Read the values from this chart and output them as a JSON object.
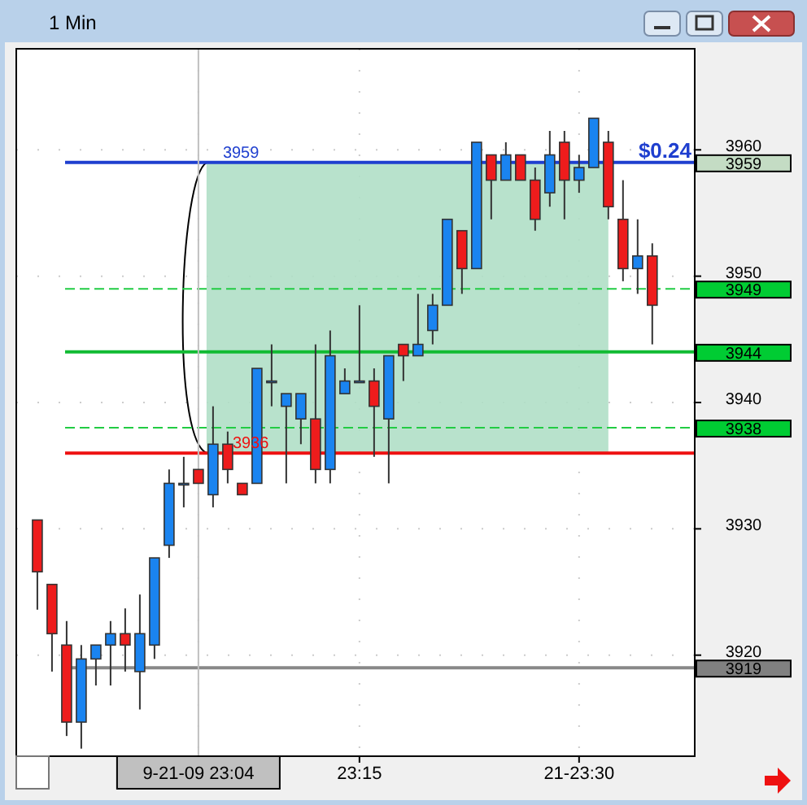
{
  "chart_data": {
    "type": "candlestick",
    "title": "1 Min",
    "categories": [
      null,
      null,
      null,
      null,
      null,
      null,
      null,
      null,
      null,
      null,
      null,
      "9-21-09 23:04",
      null,
      null,
      null,
      null,
      null,
      null,
      null,
      null,
      null,
      null,
      "23:15",
      null,
      null,
      null,
      null,
      null,
      null,
      null,
      null,
      null,
      null,
      null,
      null,
      null,
      null,
      "21-23:30",
      null,
      null,
      null,
      null,
      null
    ],
    "ohlc": [
      [
        3930.7,
        3930.7,
        3923.6,
        3926.6
      ],
      [
        3925.6,
        3925.6,
        3918.7,
        3921.7
      ],
      [
        3920.8,
        3922.7,
        3913.6,
        3914.7
      ],
      [
        3914.7,
        3920.8,
        3912.6,
        3919.7
      ],
      [
        3919.7,
        3920.8,
        3917.6,
        3920.8
      ],
      [
        3920.8,
        3922.7,
        3917.6,
        3921.7
      ],
      [
        3921.7,
        3923.7,
        3918.7,
        3920.8
      ],
      [
        3918.7,
        3924.8,
        3915.7,
        3921.7
      ],
      [
        3920.8,
        3927.7,
        3919.7,
        3927.7
      ],
      [
        3928.7,
        3934.7,
        3927.7,
        3933.6
      ],
      [
        3933.6,
        3935.7,
        3931.7,
        3933.6
      ],
      [
        3934.7,
        3934.7,
        3933.6,
        3933.6
      ],
      [
        3932.7,
        3939.7,
        3931.7,
        3936.7
      ],
      [
        3936.7,
        3937.7,
        3933.6,
        3934.7
      ],
      [
        3933.6,
        3933.6,
        3932.7,
        3932.7
      ],
      [
        3933.6,
        3942.7,
        3933.6,
        3942.7
      ],
      [
        3941.7,
        3944.6,
        3939.7,
        3941.7
      ],
      [
        3939.7,
        3940.7,
        3933.6,
        3940.7
      ],
      [
        3938.7,
        3940.7,
        3936.7,
        3940.7
      ],
      [
        3938.7,
        3944.6,
        3933.6,
        3934.7
      ],
      [
        3934.7,
        3945.7,
        3933.6,
        3943.7
      ],
      [
        3940.7,
        3942.7,
        3940.7,
        3941.7
      ],
      [
        3941.7,
        3947.7,
        3941.7,
        3941.7
      ],
      [
        3941.7,
        3942.7,
        3935.7,
        3939.7
      ],
      [
        3938.7,
        3943.7,
        3933.6,
        3943.7
      ],
      [
        3944.6,
        3944.6,
        3941.7,
        3943.7
      ],
      [
        3943.7,
        3948.6,
        3943.7,
        3944.6
      ],
      [
        3945.7,
        3948.6,
        3944.6,
        3947.7
      ],
      [
        3947.7,
        3954.5,
        3947.7,
        3954.5
      ],
      [
        3953.6,
        3953.6,
        3948.6,
        3950.6
      ],
      [
        3950.6,
        3960.6,
        3950.6,
        3960.6
      ],
      [
        3959.6,
        3959.6,
        3954.5,
        3957.6
      ],
      [
        3957.6,
        3960.6,
        3957.6,
        3959.6
      ],
      [
        3959.6,
        3959.6,
        3957.6,
        3957.6
      ],
      [
        3957.6,
        3958.6,
        3953.6,
        3954.5
      ],
      [
        3956.6,
        3961.5,
        3955.5,
        3959.6
      ],
      [
        3960.6,
        3961.5,
        3954.5,
        3957.6
      ],
      [
        3957.6,
        3959.6,
        3956.6,
        3958.6
      ],
      [
        3958.6,
        3962.5,
        3958.6,
        3962.5
      ],
      [
        3960.6,
        3961.5,
        3954.5,
        3955.5
      ],
      [
        3954.5,
        3957.6,
        3949.6,
        3950.6
      ],
      [
        3950.6,
        3954.5,
        3948.6,
        3951.6
      ],
      [
        3951.6,
        3952.6,
        3944.6,
        3947.7
      ]
    ],
    "colors": [
      "#ee1c1c",
      "#ee1c1c",
      "#ee1c1c",
      "#1a84f0",
      "#1a84f0",
      "#1a84f0",
      "#ee1c1c",
      "#1a84f0",
      "#1a84f0",
      "#1a84f0",
      "#1a84f0",
      "#ee1c1c",
      "#1a84f0",
      "#ee1c1c",
      "#ee1c1c",
      "#1a84f0",
      "#1a84f0",
      "#1a84f0",
      "#1a84f0",
      "#ee1c1c",
      "#1a84f0",
      "#1a84f0",
      "#1a84f0",
      "#ee1c1c",
      "#1a84f0",
      "#ee1c1c",
      "#1a84f0",
      "#1a84f0",
      "#1a84f0",
      "#ee1c1c",
      "#1a84f0",
      "#ee1c1c",
      "#1a84f0",
      "#ee1c1c",
      "#ee1c1c",
      "#1a84f0",
      "#ee1c1c",
      "#1a84f0",
      "#1a84f0",
      "#ee1c1c",
      "#ee1c1c",
      "#1a84f0",
      "#ee1c1c"
    ],
    "ylim": [
      3912,
      3968
    ],
    "yticks": [
      3920,
      3930,
      3940,
      3950,
      3960
    ],
    "grid": true,
    "bands": [
      {
        "axis": "y",
        "from": 3936,
        "to": 3959,
        "color": "#b0dfc6"
      }
    ],
    "ref_lines": [
      {
        "axis": "y",
        "value": 3959,
        "label": "3959",
        "color": "#1f3fcf",
        "line_style": "solid"
      },
      {
        "axis": "y",
        "value": 3949,
        "label": "3949",
        "color": "#22cc44",
        "line_style": "dashed"
      },
      {
        "axis": "y",
        "value": 3944,
        "label": "3944",
        "color": "#11bb33",
        "line_style": "solid"
      },
      {
        "axis": "y",
        "value": 3938,
        "label": "3938",
        "color": "#22cc44",
        "line_style": "dashed"
      },
      {
        "axis": "y",
        "value": 3919,
        "label": "3919",
        "color": "#888888",
        "line_style": "solid"
      },
      {
        "axis": "y",
        "value": 3936,
        "label": null,
        "color": "#ee1111",
        "line_style": "solid"
      },
      {
        "axis": "x",
        "value": "9-21-09 23:04",
        "label": null,
        "color": "#c0c0c0",
        "line_style": "solid"
      }
    ],
    "annotations": [
      {
        "text": "3959",
        "y": 3959
      },
      {
        "text": "3936",
        "y": 3936
      },
      {
        "text": "$0.24",
        "y": 3959
      }
    ]
  }
}
